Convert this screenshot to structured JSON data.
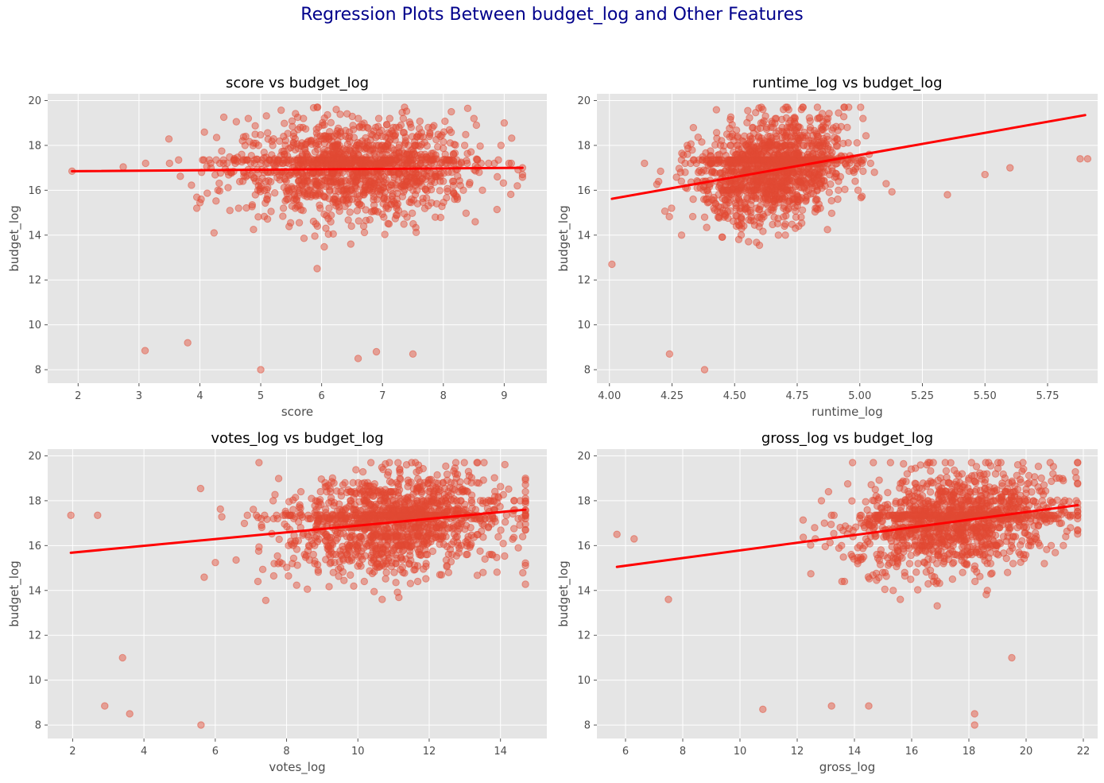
{
  "figure": {
    "suptitle": "Regression Plots Between budget_log and Other Features",
    "suptitle_color": "#00008b",
    "style": "ggplot",
    "point_color": "#e24a33",
    "line_color": "#ff0000",
    "panel_background": "#e5e5e5",
    "grid": true
  },
  "chart_data": [
    {
      "type": "scatter",
      "title": "score vs budget_log",
      "xlabel": "score",
      "ylabel": "budget_log",
      "xlim": [
        1.5,
        9.7
      ],
      "ylim": [
        7.4,
        20.3
      ],
      "xticks": [
        2,
        3,
        4,
        5,
        6,
        7,
        8,
        9
      ],
      "yticks": [
        8,
        10,
        12,
        14,
        16,
        18,
        20
      ],
      "regression_line": {
        "x": [
          1.9,
          9.3
        ],
        "y": [
          16.85,
          17.0
        ]
      },
      "point_cloud": {
        "x_range": [
          1.9,
          9.3
        ],
        "y_range": [
          8.0,
          19.7
        ],
        "x_center": 6.5,
        "x_spread": 1.0,
        "y_center": 17.0,
        "y_spread": 1.1
      },
      "notable_points": [
        [
          5.0,
          8.0
        ],
        [
          3.1,
          8.85
        ],
        [
          3.8,
          9.2
        ],
        [
          6.6,
          8.5
        ],
        [
          6.9,
          8.8
        ],
        [
          7.5,
          8.7
        ],
        [
          9.3,
          17.0
        ],
        [
          8.4,
          19.65
        ],
        [
          9.0,
          19.0
        ],
        [
          1.9,
          16.85
        ]
      ]
    },
    {
      "type": "scatter",
      "title": "runtime_log vs budget_log",
      "xlabel": "runtime_log",
      "ylabel": "budget_log",
      "xlim": [
        3.95,
        5.95
      ],
      "ylim": [
        7.4,
        20.3
      ],
      "xticks": [
        "4.00",
        "4.25",
        "4.50",
        "4.75",
        "5.00",
        "5.25",
        "5.50",
        "5.75"
      ],
      "yticks": [
        8,
        10,
        12,
        14,
        16,
        18,
        20
      ],
      "regression_line": {
        "x": [
          4.01,
          5.9
        ],
        "y": [
          15.62,
          19.35
        ]
      },
      "point_cloud": {
        "x_range": [
          4.0,
          5.9
        ],
        "y_range": [
          8.0,
          19.7
        ],
        "x_center": 4.65,
        "x_spread": 0.15,
        "y_center": 17.0,
        "y_spread": 1.1
      },
      "notable_points": [
        [
          4.01,
          12.7
        ],
        [
          4.38,
          8.0
        ],
        [
          4.24,
          8.7
        ],
        [
          5.6,
          17.0
        ],
        [
          5.88,
          17.4
        ],
        [
          5.91,
          17.4
        ],
        [
          5.5,
          16.7
        ],
        [
          5.35,
          15.8
        ],
        [
          4.14,
          17.2
        ]
      ]
    },
    {
      "type": "scatter",
      "title": "votes_log vs budget_log",
      "xlabel": "votes_log",
      "ylabel": "budget_log",
      "xlim": [
        1.3,
        15.3
      ],
      "ylim": [
        7.4,
        20.3
      ],
      "xticks": [
        2,
        4,
        6,
        8,
        10,
        12,
        14
      ],
      "yticks": [
        8,
        10,
        12,
        14,
        16,
        18,
        20
      ],
      "regression_line": {
        "x": [
          1.95,
          14.7
        ],
        "y": [
          15.68,
          17.6
        ]
      },
      "point_cloud": {
        "x_range": [
          1.95,
          14.7
        ],
        "y_range": [
          8.0,
          19.7
        ],
        "x_center": 11.0,
        "x_spread": 1.6,
        "y_center": 16.9,
        "y_spread": 1.1
      },
      "notable_points": [
        [
          1.95,
          17.35
        ],
        [
          2.9,
          8.85
        ],
        [
          3.6,
          8.5
        ],
        [
          3.4,
          11.0
        ],
        [
          5.6,
          8.0
        ],
        [
          2.7,
          17.35
        ],
        [
          14.7,
          19.0
        ],
        [
          14.5,
          15.9
        ]
      ]
    },
    {
      "type": "scatter",
      "title": "gross_log vs budget_log",
      "xlabel": "gross_log",
      "ylabel": "budget_log",
      "xlim": [
        5.0,
        22.5
      ],
      "ylim": [
        7.4,
        20.3
      ],
      "xticks": [
        6,
        8,
        10,
        12,
        14,
        16,
        18,
        20,
        22
      ],
      "yticks": [
        8,
        10,
        12,
        14,
        16,
        18,
        20
      ],
      "regression_line": {
        "x": [
          5.7,
          21.8
        ],
        "y": [
          15.05,
          17.8
        ]
      },
      "point_cloud": {
        "x_range": [
          5.7,
          21.8
        ],
        "y_range": [
          8.0,
          19.7
        ],
        "x_center": 17.5,
        "x_spread": 1.8,
        "y_center": 17.0,
        "y_spread": 1.1
      },
      "notable_points": [
        [
          5.7,
          16.5
        ],
        [
          6.3,
          16.3
        ],
        [
          7.5,
          13.6
        ],
        [
          10.8,
          8.7
        ],
        [
          13.2,
          8.85
        ],
        [
          14.5,
          8.85
        ],
        [
          18.2,
          8.0
        ],
        [
          18.2,
          8.5
        ],
        [
          21.8,
          19.7
        ],
        [
          19.5,
          11.0
        ]
      ]
    }
  ]
}
